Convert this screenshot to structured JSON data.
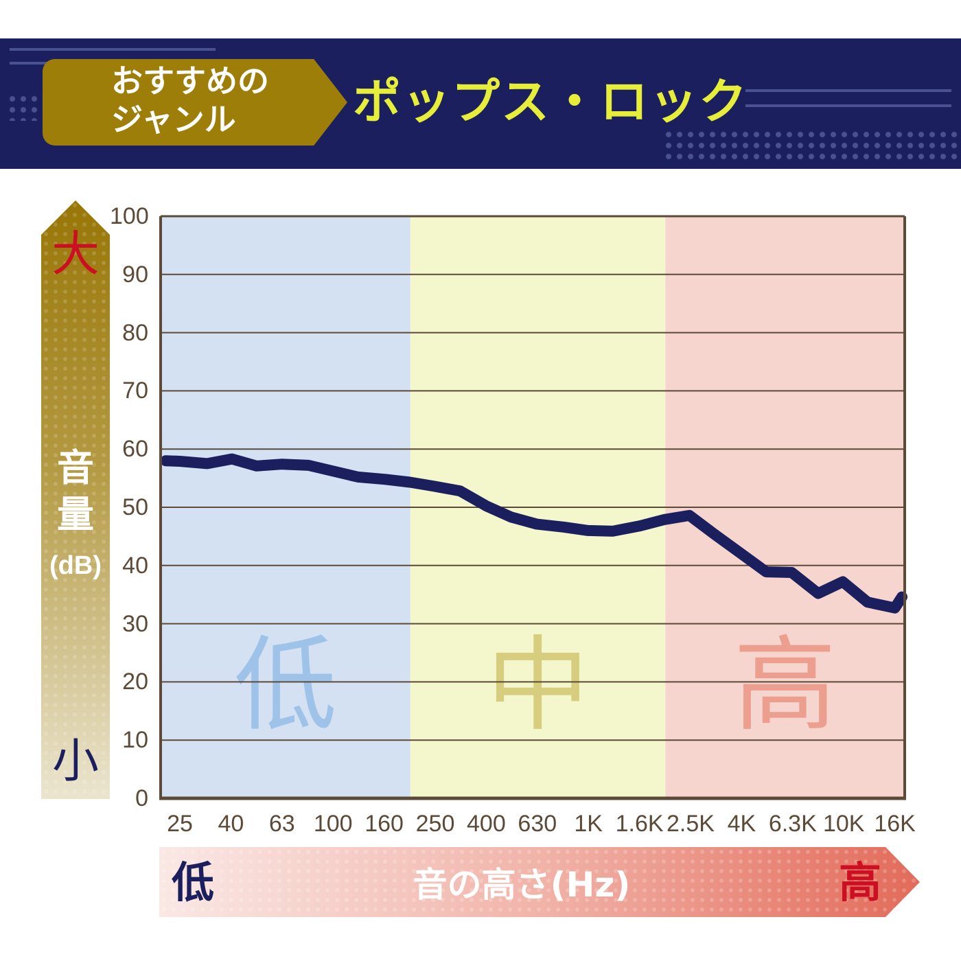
{
  "header": {
    "tag_line1": "おすすめの",
    "tag_line2": "ジャンル",
    "genre": "ポップス・ロック"
  },
  "y_axis": {
    "high": "大",
    "low": "小",
    "label_line1": "音",
    "label_line2": "量",
    "unit": "(dB)"
  },
  "x_axis": {
    "label": "音の高さ(Hz)",
    "low": "低",
    "high": "高"
  },
  "bands": [
    {
      "label": "低",
      "color": "#d4e1f3",
      "text_color": "#9fc3e8",
      "from_index": 0,
      "to_index": 5
    },
    {
      "label": "中",
      "color": "#f4f7cc",
      "text_color": "#d6ce7e",
      "from_index": 5,
      "to_index": 10
    },
    {
      "label": "高",
      "color": "#f5d5cd",
      "text_color": "#ec9e8f",
      "from_index": 10,
      "to_index": 14.2
    }
  ],
  "colors": {
    "line": "#1b1f5e",
    "banner": "#1b1f5e",
    "tag": "#9c7e08",
    "genre_text": "#e6ee3a",
    "grid": "#5c4a38",
    "high_red": "#cc0f22"
  },
  "chart_data": {
    "type": "line",
    "title": "ポップス・ロック",
    "xlabel": "音の高さ(Hz)",
    "ylabel": "音量(dB)",
    "ylim": [
      0,
      100
    ],
    "yticks": [
      0,
      10,
      20,
      30,
      40,
      50,
      60,
      70,
      80,
      90,
      100
    ],
    "xscale": "log",
    "categories": [
      "25",
      "40",
      "63",
      "100",
      "160",
      "250",
      "400",
      "630",
      "1K",
      "1.6K",
      "2.5K",
      "4K",
      "6.3K",
      "10K",
      "16K"
    ],
    "grid": true,
    "series": [
      {
        "x": [
          22,
          25,
          32,
          40,
          50,
          63,
          80,
          100,
          125,
          160,
          200,
          250,
          315,
          400,
          500,
          630,
          800,
          1000,
          1250,
          1600,
          2000,
          2500,
          3150,
          4000,
          5000,
          6300,
          8000,
          10000,
          12500,
          16000,
          18000
        ],
        "values": [
          58.0,
          57.9,
          57.5,
          58.3,
          57.1,
          57.4,
          57.2,
          56.2,
          55.2,
          54.8,
          54.3,
          53.6,
          52.8,
          50.2,
          48.3,
          47.1,
          46.6,
          46.0,
          45.9,
          46.8,
          47.9,
          48.6,
          45.3,
          42.0,
          38.9,
          38.8,
          35.2,
          37.2,
          33.7,
          32.7,
          34.6
        ]
      }
    ]
  }
}
